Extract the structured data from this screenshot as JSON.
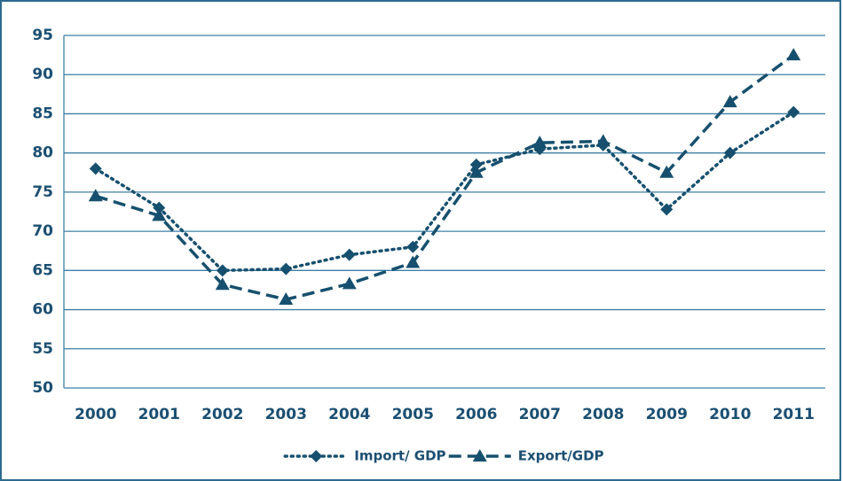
{
  "chart_data": {
    "type": "line",
    "categories": [
      "2000",
      "2001",
      "2002",
      "2003",
      "2004",
      "2005",
      "2006",
      "2007",
      "2008",
      "2009",
      "2010",
      "2011"
    ],
    "series": [
      {
        "name": "Import/ GDP",
        "color": "#17506e",
        "dash": "dotted",
        "marker": "diamond",
        "values": [
          78,
          73,
          65,
          65.2,
          67,
          68,
          78.5,
          80.5,
          81,
          72.8,
          80,
          85.2
        ]
      },
      {
        "name": "Export/GDP",
        "color": "#17506e",
        "dash": "dashed",
        "marker": "triangle",
        "values": [
          74.5,
          72,
          63.2,
          61.3,
          63.3,
          66,
          77.5,
          81.3,
          81.5,
          77.5,
          86.5,
          92.5
        ]
      }
    ],
    "ylim": [
      50,
      95
    ],
    "yticks": [
      50,
      55,
      60,
      65,
      70,
      75,
      80,
      85,
      90,
      95
    ],
    "grid": true,
    "legend": "bottom"
  }
}
